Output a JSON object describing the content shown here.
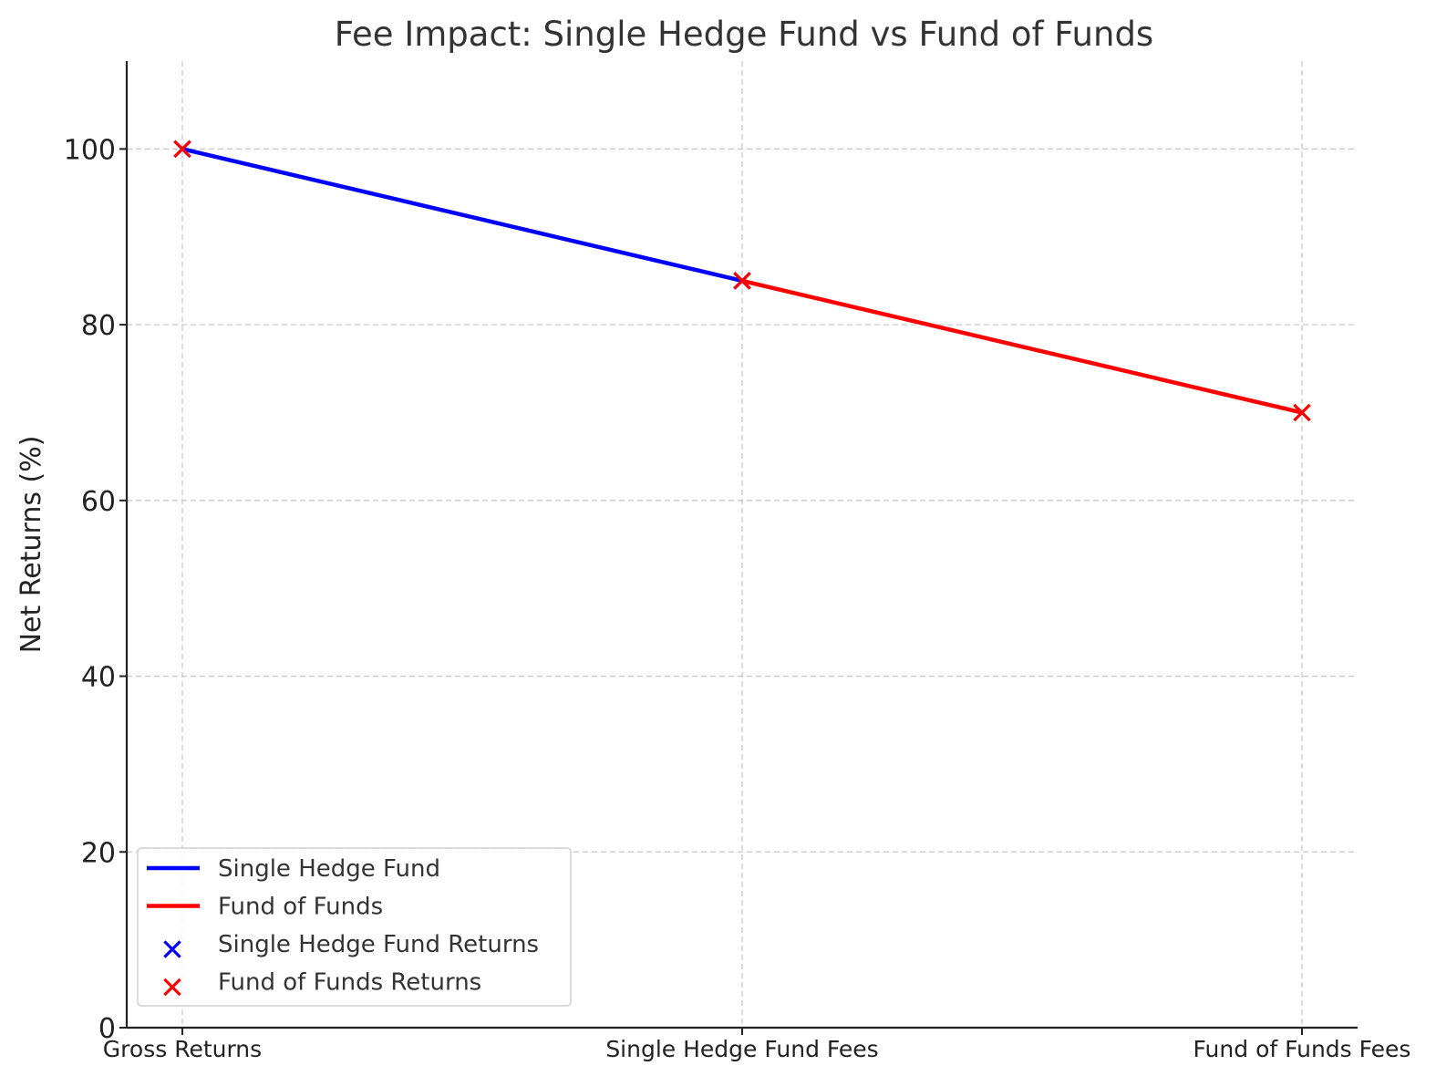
{
  "chart_data": {
    "type": "line",
    "title": "Fee Impact: Single Hedge Fund vs Fund of Funds",
    "xlabel": "",
    "ylabel": "Net Returns (%)",
    "categories": [
      "Gross Returns",
      "Single Hedge Fund Fees",
      "Fund of Funds Fees"
    ],
    "ylim": [
      0,
      110
    ],
    "yticks": [
      0,
      20,
      40,
      60,
      80,
      100
    ],
    "grid": true,
    "legend_position": "lower-left",
    "series": [
      {
        "name": "Single Hedge Fund",
        "kind": "line",
        "color": "#0000ff",
        "x": [
          "Gross Returns",
          "Single Hedge Fund Fees"
        ],
        "values": [
          100,
          85
        ]
      },
      {
        "name": "Fund of Funds",
        "kind": "line",
        "color": "#ff0000",
        "x": [
          "Single Hedge Fund Fees",
          "Fund of Funds Fees"
        ],
        "values": [
          85,
          70
        ]
      },
      {
        "name": "Single Hedge Fund Returns",
        "kind": "scatter",
        "marker": "x",
        "color": "#0000ff",
        "x": [
          "Gross Returns",
          "Single Hedge Fund Fees"
        ],
        "values": [
          100,
          85
        ]
      },
      {
        "name": "Fund of Funds Returns",
        "kind": "scatter",
        "marker": "x",
        "color": "#ff0000",
        "x": [
          "Gross Returns",
          "Single Hedge Fund Fees",
          "Fund of Funds Fees"
        ],
        "values": [
          100,
          85,
          70
        ]
      }
    ]
  }
}
